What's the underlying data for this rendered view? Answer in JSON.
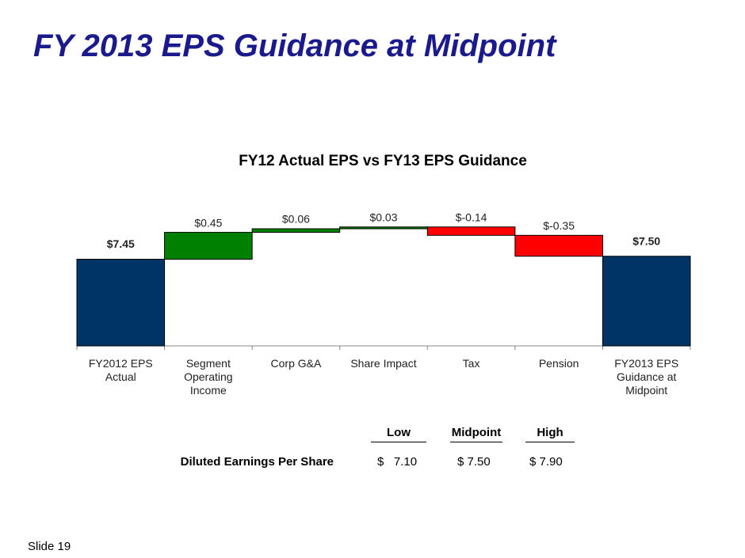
{
  "title": "FY 2013 EPS Guidance at Midpoint",
  "chart_data": {
    "type": "waterfall",
    "title": "FY12 Actual EPS vs FY13 EPS Guidance",
    "categories": [
      "FY2012 EPS Actual",
      "Segment Operating Income",
      "Corp G&A",
      "Share Impact",
      "Tax",
      "Pension",
      "FY2013 EPS Guidance at Midpoint"
    ],
    "values": [
      7.45,
      0.45,
      0.06,
      0.03,
      -0.14,
      -0.35,
      7.5
    ],
    "value_labels": [
      "$7.45",
      "$0.45",
      "$0.06",
      "$0.03",
      "$-0.14",
      "$-0.35",
      "$7.50"
    ],
    "colors": [
      "#003366",
      "#008000",
      "#008000",
      "#008000",
      "#ff0000",
      "#ff0000",
      "#003366"
    ],
    "ylim": [
      6,
      8
    ]
  },
  "table": {
    "columns": [
      "Low",
      "Midpoint",
      "High"
    ],
    "rows": [
      [
        "Diluted Earnings Per Share",
        "$   7.10",
        "$ 7.50",
        "$ 7.90"
      ]
    ]
  },
  "footer": "Slide 19"
}
